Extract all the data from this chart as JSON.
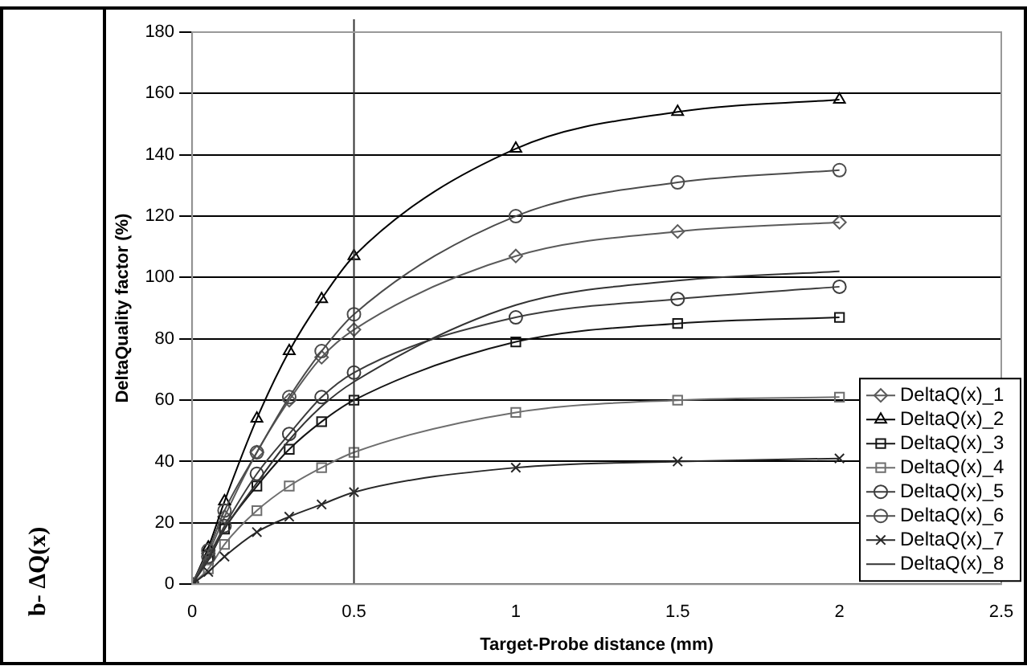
{
  "chart_data": {
    "type": "line",
    "xlabel": "Target-Probe distance (mm)",
    "ylabel": "DeltaQuality factor (%)",
    "annotations": [
      "b- ΔQ(x)"
    ],
    "x": [
      0,
      0.05,
      0.1,
      0.2,
      0.3,
      0.4,
      0.5,
      1,
      1.5,
      2
    ],
    "xlim": [
      0,
      2.5
    ],
    "xticks": [
      0,
      0.5,
      1,
      1.5,
      2,
      2.5
    ],
    "ylim": [
      0,
      180
    ],
    "yticks": [
      0,
      20,
      40,
      60,
      80,
      100,
      120,
      140,
      160,
      180
    ],
    "grid": "y",
    "legend": "right",
    "ref_lines": [
      {
        "axis": "x",
        "value": 0.5,
        "color": "#333333"
      }
    ],
    "series": [
      {
        "name": "DeltaQ(x)_1",
        "color": "#5a5a5a",
        "marker": "diamond",
        "values": [
          0,
          10,
          22,
          43,
          60,
          74,
          83,
          107,
          115,
          118
        ]
      },
      {
        "name": "DeltaQ(x)_2",
        "color": "#000000",
        "marker": "triangle",
        "values": [
          0,
          12,
          27,
          54,
          76,
          93,
          107,
          142,
          154,
          158
        ]
      },
      {
        "name": "DeltaQ(x)_3",
        "color": "#141414",
        "marker": "square",
        "values": [
          0,
          8,
          18,
          32,
          44,
          53,
          60,
          79,
          85,
          87
        ]
      },
      {
        "name": "DeltaQ(x)_4",
        "color": "#6e6e6e",
        "marker": "square",
        "values": [
          0,
          5,
          13,
          24,
          32,
          38,
          43,
          56,
          60,
          61
        ]
      },
      {
        "name": "DeltaQ(x)_5",
        "color": "#3c3c3c",
        "marker": "circle",
        "values": [
          0,
          9,
          19,
          36,
          49,
          61,
          69,
          87,
          93,
          97
        ]
      },
      {
        "name": "DeltaQ(x)_6",
        "color": "#4b4b4b",
        "marker": "circle",
        "values": [
          0,
          11,
          24,
          43,
          61,
          76,
          88,
          120,
          131,
          135
        ]
      },
      {
        "name": "DeltaQ(x)_7",
        "color": "#282828",
        "marker": "cross",
        "values": [
          0,
          4,
          9,
          17,
          22,
          26,
          30,
          38,
          40,
          41
        ]
      },
      {
        "name": "DeltaQ(x)_8",
        "color": "#333333",
        "marker": "none",
        "values": [
          0,
          8,
          18,
          33,
          47,
          58,
          66,
          91,
          99,
          102
        ]
      }
    ]
  }
}
